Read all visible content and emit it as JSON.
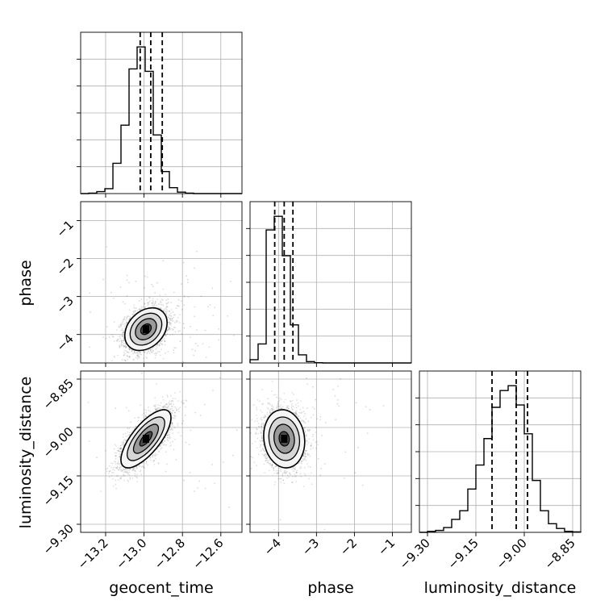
{
  "chart_data": {
    "type": "corner",
    "parameters": [
      "geocent_time",
      "phase",
      "luminosity_distance"
    ],
    "grid": true,
    "quantile_line_style": "dashed",
    "hist_bins": 20,
    "tick_labels": {
      "geocent_time": [
        "−13.2",
        "−13.0",
        "−12.8",
        "−12.6"
      ],
      "phase": [
        "−4",
        "−3",
        "−2",
        "−1"
      ],
      "luminosity_distance": [
        "−9.30",
        "−9.15",
        "−9.00",
        "−8.85"
      ]
    },
    "panels": [
      {
        "panel": "hist",
        "param": "geocent_time",
        "xlim": [
          -13.33,
          -12.49
        ],
        "bin_edges": [
          -13.33,
          -13.288,
          -13.246,
          -13.204,
          -13.162,
          -13.12,
          -13.078,
          -13.036,
          -12.994,
          -12.952,
          -12.91,
          -12.868,
          -12.826,
          -12.784,
          -12.742,
          -12.7,
          -12.658,
          -12.616,
          -12.574,
          -12.532,
          -12.49
        ],
        "counts": [
          0,
          1,
          4,
          10,
          62,
          140,
          255,
          300,
          250,
          120,
          45,
          12,
          3,
          1,
          0,
          0,
          0,
          0,
          0,
          0
        ],
        "quantiles": [
          -13.02,
          -12.965,
          -12.905
        ]
      },
      {
        "panel": "hist",
        "param": "phase",
        "xlim": [
          -4.75,
          -0.5
        ],
        "bin_edges": [
          -4.75,
          -4.5375,
          -4.325,
          -4.1125,
          -3.9,
          -3.6875,
          -3.475,
          -3.2625,
          -3.05,
          -2.8375,
          -2.625,
          -2.4125,
          -2.2,
          -1.9875,
          -1.775,
          -1.5625,
          -1.35,
          -1.1375,
          -0.925,
          -0.7125,
          -0.5
        ],
        "counts": [
          12,
          70,
          490,
          540,
          395,
          140,
          30,
          5,
          1,
          0,
          0,
          0,
          0,
          0,
          0,
          0,
          0,
          0,
          0,
          0
        ],
        "quantiles": [
          -4.1,
          -3.85,
          -3.62
        ]
      },
      {
        "panel": "hist",
        "param": "luminosity_distance",
        "xlim": [
          -9.325,
          -8.825
        ],
        "bin_edges": [
          -9.325,
          -9.3,
          -9.275,
          -9.25,
          -9.225,
          -9.2,
          -9.175,
          -9.15,
          -9.125,
          -9.1,
          -9.075,
          -9.05,
          -9.025,
          -9.0,
          -8.975,
          -8.95,
          -8.925,
          -8.9,
          -8.875,
          -8.85,
          -8.825
        ],
        "counts": [
          0,
          2,
          4,
          10,
          27,
          45,
          90,
          140,
          195,
          260,
          295,
          305,
          265,
          205,
          108,
          45,
          18,
          8,
          2,
          1
        ],
        "quantiles": [
          -9.1,
          -9.025,
          -8.99
        ]
      },
      {
        "panel": "2d",
        "x": "geocent_time",
        "y": "phase",
        "xlim": [
          -13.33,
          -12.49
        ],
        "ylim": [
          -4.75,
          -0.5
        ],
        "mean": [
          -12.99,
          -3.86
        ],
        "sd": [
          0.055,
          0.28
        ],
        "corr": 0.3,
        "n_points": 3000,
        "n_outliers": 160
      },
      {
        "panel": "2d",
        "x": "geocent_time",
        "y": "luminosity_distance",
        "xlim": [
          -13.33,
          -12.49
        ],
        "ylim": [
          -9.325,
          -8.825
        ],
        "mean": [
          -12.99,
          -9.035
        ],
        "sd": [
          0.065,
          0.045
        ],
        "corr": 0.72,
        "n_points": 3000,
        "n_outliers": 60
      },
      {
        "panel": "2d",
        "x": "phase",
        "y": "luminosity_distance",
        "xlim": [
          -4.75,
          -0.5
        ],
        "ylim": [
          -9.325,
          -8.825
        ],
        "mean": [
          -3.85,
          -9.035
        ],
        "sd": [
          0.27,
          0.045
        ],
        "corr": -0.1,
        "n_points": 3000,
        "n_outliers": 90
      }
    ]
  }
}
